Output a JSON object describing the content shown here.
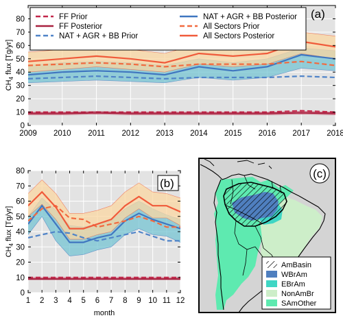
{
  "figure": {
    "background": "#ffffff",
    "axes_bg": "#e3e3e3",
    "map_bg": "#d4d4d4"
  },
  "chart_data": [
    {
      "panel": "(a)",
      "type": "line",
      "xlabel": "",
      "ylabel": "CH4 flux [Tg/yr]",
      "ylabel_main": "CH",
      "ylabel_sub": "4",
      "ylabel_rest": " flux [Tg/yr]",
      "x": [
        2009,
        2010,
        2011,
        2012,
        2013,
        2014,
        2015,
        2016,
        2017,
        2018
      ],
      "xlim": [
        2009,
        2018
      ],
      "ylim": [
        0,
        90
      ],
      "yticks": [
        0,
        10,
        20,
        30,
        40,
        50,
        60,
        70,
        80
      ],
      "grid": true,
      "legend_position": "top",
      "series": [
        {
          "name": "FF Prior",
          "color": "#c2274a",
          "dash": true,
          "values": [
            10,
            10,
            10,
            10,
            10,
            10,
            10,
            10,
            11,
            10
          ]
        },
        {
          "name": "FF Posterior",
          "color": "#a8203f",
          "dash": false,
          "values": [
            9,
            9,
            9.5,
            9,
            9,
            9,
            9,
            9,
            9.5,
            9
          ],
          "band": [
            [
              8,
              10
            ],
            [
              8,
              10
            ],
            [
              8.5,
              10.5
            ],
            [
              8,
              10
            ],
            [
              8,
              10
            ],
            [
              8,
              10
            ],
            [
              8,
              10
            ],
            [
              8,
              10
            ],
            [
              8.5,
              10.5
            ],
            [
              8,
              10
            ]
          ],
          "band_color": "#e8a7b4"
        },
        {
          "name": "NAT + AGR + BB Prior",
          "color": "#4f83c8",
          "dash": true,
          "values": [
            35,
            36,
            37,
            36,
            35,
            36,
            36,
            36,
            37,
            36
          ]
        },
        {
          "name": "NAT + AGR + BB Posterior",
          "color": "#3f76c0",
          "dash": false,
          "values": [
            38,
            40,
            41,
            40,
            38,
            44,
            41,
            44,
            53,
            50
          ],
          "band": [
            [
              32,
              45
            ],
            [
              33,
              47
            ],
            [
              34,
              48
            ],
            [
              33,
              47
            ],
            [
              32,
              45
            ],
            [
              36,
              50
            ],
            [
              34,
              47
            ],
            [
              36,
              50
            ],
            [
              43,
              58
            ],
            [
              41,
              56
            ]
          ],
          "band_color": "#76c4d3"
        },
        {
          "name": "All Sectors Prior",
          "color": "#f26a3f",
          "dash": true,
          "values": [
            45,
            46,
            47,
            46,
            44,
            46,
            46,
            46,
            48,
            45
          ]
        },
        {
          "name": "All Sectors Posterior",
          "color": "#f05a3a",
          "dash": false,
          "values": [
            48,
            50,
            52,
            50,
            47,
            54,
            52,
            54,
            63,
            59
          ],
          "band": [
            [
              40,
              55
            ],
            [
              42,
              57
            ],
            [
              44,
              58
            ],
            [
              42,
              57
            ],
            [
              40,
              54
            ],
            [
              46,
              61
            ],
            [
              44,
              59
            ],
            [
              46,
              61
            ],
            [
              54,
              70
            ],
            [
              50,
              67
            ]
          ],
          "band_color": "#fbd7a1"
        }
      ]
    },
    {
      "panel": "(b)",
      "type": "line",
      "xlabel": "month",
      "ylabel": "CH4 flux [Tg/yr]",
      "ylabel_main": "CH",
      "ylabel_sub": "4",
      "ylabel_rest": " flux [Tg/yr]",
      "x": [
        1,
        2,
        3,
        4,
        5,
        6,
        7,
        8,
        9,
        10,
        11,
        12
      ],
      "xlim": [
        1,
        12
      ],
      "ylim": [
        0,
        80
      ],
      "yticks": [
        0,
        10,
        20,
        30,
        40,
        50,
        60,
        70,
        80
      ],
      "grid": true,
      "series": [
        {
          "name": "FF Prior",
          "color": "#c2274a",
          "dash": true,
          "values": [
            10,
            10,
            10,
            10,
            10,
            10,
            10,
            10,
            10,
            10,
            10,
            10
          ]
        },
        {
          "name": "FF Posterior",
          "color": "#a8203f",
          "dash": false,
          "values": [
            9,
            9,
            9,
            9,
            9,
            9,
            9,
            9,
            9,
            9,
            9,
            9
          ],
          "band": [
            [
              8.5,
              10
            ],
            [
              8.5,
              10
            ],
            [
              8.5,
              10
            ],
            [
              8.5,
              10
            ],
            [
              8.5,
              10
            ],
            [
              8.5,
              10
            ],
            [
              8.5,
              10
            ],
            [
              8.5,
              10
            ],
            [
              8.5,
              10
            ],
            [
              8.5,
              10
            ],
            [
              8.5,
              10
            ],
            [
              8.5,
              10
            ]
          ],
          "band_color": "#e8a7b4"
        },
        {
          "name": "NAT + AGR + BB Prior",
          "color": "#4f83c8",
          "dash": true,
          "values": [
            36,
            38,
            40,
            39,
            36,
            34,
            36,
            38,
            40,
            37,
            34,
            34
          ]
        },
        {
          "name": "NAT + AGR + BB Posterior",
          "color": "#3f76c0",
          "dash": false,
          "values": [
            45,
            57,
            45,
            33,
            33,
            36,
            38,
            47,
            52,
            48,
            45,
            42
          ],
          "band": [
            [
              38,
              50
            ],
            [
              50,
              62
            ],
            [
              34,
              54
            ],
            [
              24,
              44
            ],
            [
              25,
              43
            ],
            [
              28,
              45
            ],
            [
              30,
              47
            ],
            [
              38,
              55
            ],
            [
              42,
              60
            ],
            [
              38,
              55
            ],
            [
              37,
              51
            ],
            [
              33,
              48
            ]
          ],
          "band_color": "#76c4d3"
        },
        {
          "name": "All Sectors Prior",
          "color": "#f26a3f",
          "dash": true,
          "values": [
            47,
            55,
            57,
            49,
            48,
            43,
            45,
            47,
            50,
            47,
            43,
            43
          ]
        },
        {
          "name": "All Sectors Posterior",
          "color": "#f05a3a",
          "dash": false,
          "values": [
            57,
            66,
            56,
            42,
            42,
            45,
            48,
            57,
            63,
            57,
            57,
            53
          ],
          "band": [
            [
              50,
              65
            ],
            [
              58,
              74
            ],
            [
              48,
              65
            ],
            [
              35,
              52
            ],
            [
              35,
              52
            ],
            [
              38,
              54
            ],
            [
              40,
              57
            ],
            [
              49,
              66
            ],
            [
              55,
              72
            ],
            [
              49,
              66
            ],
            [
              49,
              65
            ],
            [
              44,
              62
            ]
          ],
          "band_color": "#fbd7a1"
        }
      ]
    }
  ],
  "map": {
    "panel_label": "(c)",
    "legend": [
      {
        "label": "AmBasin",
        "kind": "hatch",
        "color": "#000000"
      },
      {
        "label": "WBrAm",
        "kind": "fill",
        "color": "#4f7fbf"
      },
      {
        "label": "EBrAm",
        "kind": "fill",
        "color": "#3fd6c4"
      },
      {
        "label": "NonAmBr",
        "kind": "fill",
        "color": "#cdeec9"
      },
      {
        "label": "SAmOther",
        "kind": "fill",
        "color": "#5eeab0"
      }
    ]
  }
}
